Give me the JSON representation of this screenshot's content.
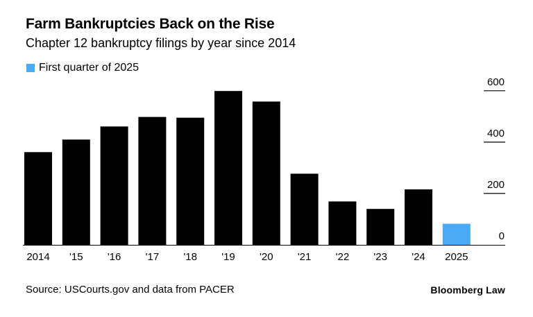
{
  "chart_data": {
    "type": "bar",
    "title": "Farm Bankruptcies Back on the Rise",
    "subtitle": "Chapter 12 bankruptcy filings by year since 2014",
    "categories": [
      "2014",
      "'15",
      "'16",
      "'17",
      "'18",
      "'19",
      "'20",
      "'21",
      "'22",
      "'23",
      "'24",
      "2025"
    ],
    "values": [
      361,
      410,
      461,
      498,
      495,
      599,
      558,
      277,
      169,
      140,
      216,
      82
    ],
    "highlight_category": "2025",
    "legend": [
      {
        "label": "First quarter of 2025",
        "color": "#4aaaf5"
      }
    ],
    "ylim": [
      0,
      640
    ],
    "yticks": [
      0,
      200,
      400,
      600
    ],
    "grid": false,
    "legend_position": "top-left",
    "colors": {
      "bar": "#000000",
      "highlight": "#4aaaf5",
      "axis": "#000000"
    }
  },
  "footer": {
    "source": "Source: USCourts.gov and data from PACER",
    "brand": "Bloomberg Law"
  }
}
